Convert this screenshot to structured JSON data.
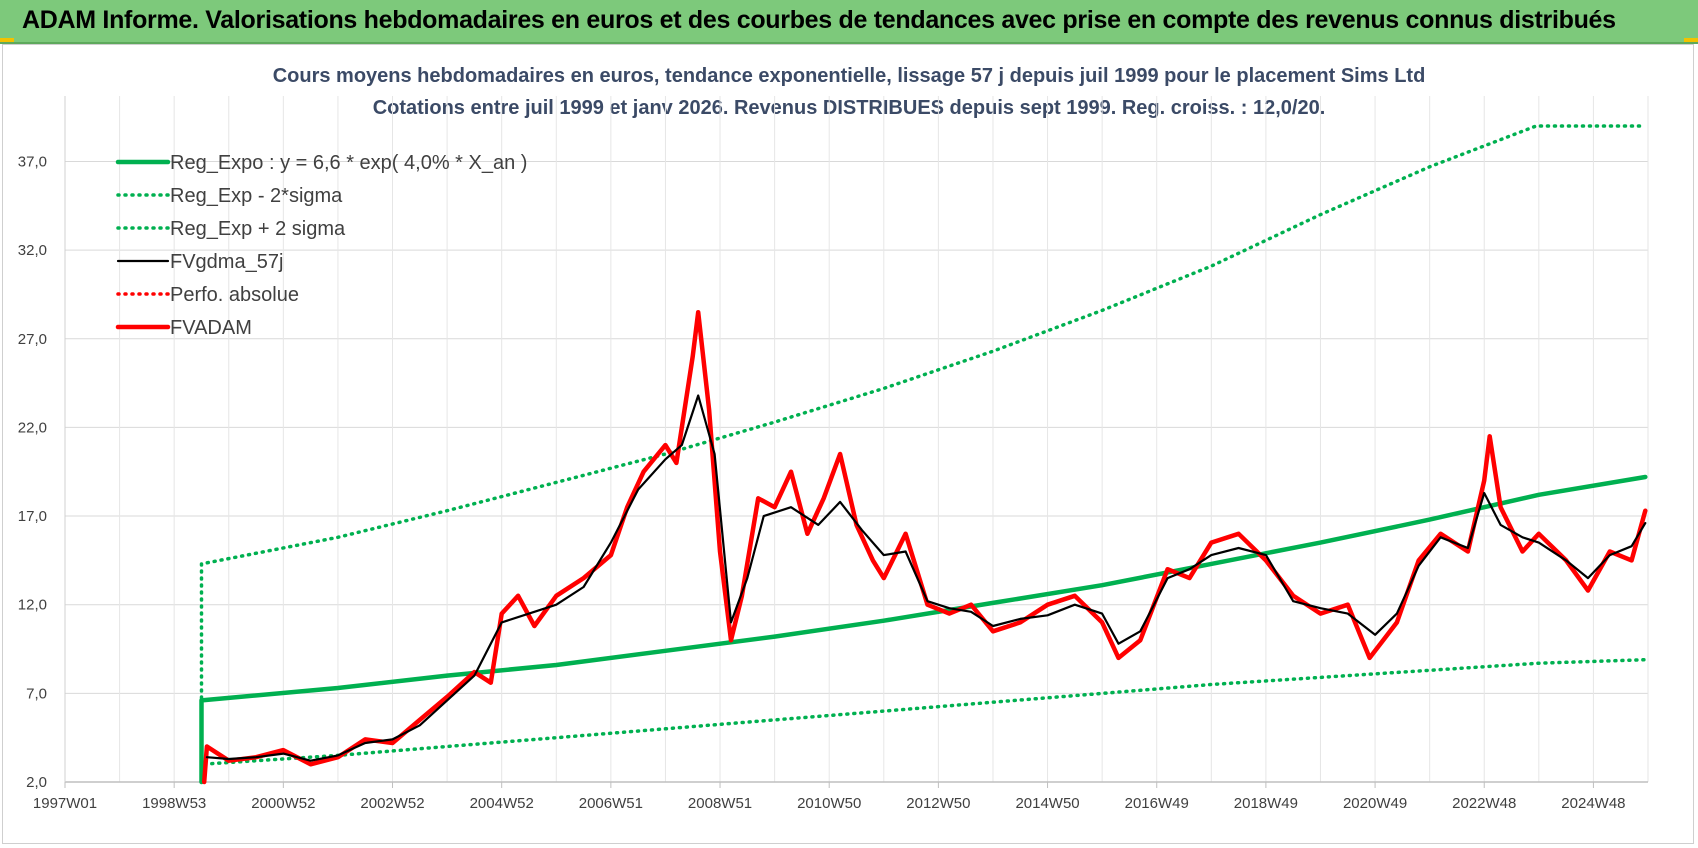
{
  "header": {
    "title": "ADAM Informe. Valorisations hebdomadaires en euros et des courbes de tendances avec prise en compte des revenus connus distribués",
    "background": "#7dc97b"
  },
  "chart_data": {
    "type": "line",
    "title": "Cours moyens hebdomadaires en euros, tendance exponentielle, lissage 57 j depuis juil 1999 pour le placement Sims Ltd",
    "subtitle": "Cotations entre juil 1999 et janv 2026. Revenus DISTRIBUES depuis sept 1999. Reg. croiss. : 12,0/20.",
    "xlabel": "",
    "ylabel": "",
    "xlim": [
      1997.0,
      2026.0
    ],
    "ylim": [
      2.0,
      39.0
    ],
    "y_ticks": [
      "2,0",
      "7,0",
      "12,0",
      "17,0",
      "22,0",
      "27,0",
      "32,0",
      "37,0"
    ],
    "x_ticks": [
      "1997W01",
      "1998W53",
      "2000W52",
      "2002W52",
      "2004W52",
      "2006W51",
      "2008W51",
      "2010W50",
      "2012W50",
      "2014W50",
      "2016W49",
      "2018W49",
      "2020W49",
      "2022W48",
      "2024W48"
    ],
    "grid": true,
    "legend_position": "top-left",
    "series": [
      {
        "name": "Reg_Expo : y = 6,6 * exp( 4,0% *  X_an )",
        "color": "#00b050",
        "style": "solid-thick",
        "points": [
          [
            1999.5,
            2.0
          ],
          [
            1999.5,
            6.6
          ],
          [
            2002,
            7.3
          ],
          [
            2004,
            8.0
          ],
          [
            2006,
            8.6
          ],
          [
            2008,
            9.4
          ],
          [
            2010,
            10.2
          ],
          [
            2012,
            11.1
          ],
          [
            2014,
            12.1
          ],
          [
            2016,
            13.1
          ],
          [
            2018,
            14.3
          ],
          [
            2020,
            15.5
          ],
          [
            2022,
            16.8
          ],
          [
            2024,
            18.2
          ],
          [
            2025.95,
            19.2
          ]
        ]
      },
      {
        "name": "Reg_Exp - 2*sigma",
        "color": "#00b050",
        "style": "dotted",
        "points": [
          [
            1999.5,
            2.0
          ],
          [
            1999.5,
            3.0
          ],
          [
            2002,
            3.5
          ],
          [
            2004,
            4.0
          ],
          [
            2006,
            4.5
          ],
          [
            2008,
            5.0
          ],
          [
            2010,
            5.5
          ],
          [
            2012,
            6.0
          ],
          [
            2014,
            6.5
          ],
          [
            2016,
            7.0
          ],
          [
            2018,
            7.5
          ],
          [
            2020,
            7.9
          ],
          [
            2022,
            8.3
          ],
          [
            2024,
            8.7
          ],
          [
            2025.95,
            8.9
          ]
        ]
      },
      {
        "name": "Reg_Exp + 2 sigma",
        "color": "#00b050",
        "style": "dotted",
        "points": [
          [
            1999.5,
            2.0
          ],
          [
            1999.5,
            14.3
          ],
          [
            2002,
            15.8
          ],
          [
            2004,
            17.3
          ],
          [
            2006,
            18.9
          ],
          [
            2008,
            20.5
          ],
          [
            2010,
            22.3
          ],
          [
            2012,
            24.2
          ],
          [
            2014,
            26.3
          ],
          [
            2016,
            28.6
          ],
          [
            2018,
            31.1
          ],
          [
            2020,
            34.0
          ],
          [
            2022,
            36.7
          ],
          [
            2023.95,
            39.0
          ],
          [
            2025.95,
            39.0
          ]
        ]
      },
      {
        "name": "FVgdma_57j",
        "color": "#000000",
        "style": "solid",
        "points": [
          [
            1999.6,
            3.4
          ],
          [
            2000,
            3.3
          ],
          [
            2000.5,
            3.4
          ],
          [
            2001,
            3.6
          ],
          [
            2001.5,
            3.2
          ],
          [
            2002,
            3.5
          ],
          [
            2002.5,
            4.2
          ],
          [
            2003,
            4.4
          ],
          [
            2003.5,
            5.2
          ],
          [
            2004,
            6.6
          ],
          [
            2004.5,
            8.0
          ],
          [
            2005,
            11.0
          ],
          [
            2005.5,
            11.5
          ],
          [
            2006,
            12.0
          ],
          [
            2006.5,
            13.0
          ],
          [
            2007,
            15.5
          ],
          [
            2007.5,
            18.5
          ],
          [
            2008,
            20.2
          ],
          [
            2008.3,
            21.0
          ],
          [
            2008.6,
            23.8
          ],
          [
            2008.9,
            20.5
          ],
          [
            2009.2,
            11.0
          ],
          [
            2009.5,
            13.5
          ],
          [
            2009.8,
            17.0
          ],
          [
            2010.3,
            17.5
          ],
          [
            2010.8,
            16.5
          ],
          [
            2011.2,
            17.8
          ],
          [
            2011.6,
            16.2
          ],
          [
            2012,
            14.8
          ],
          [
            2012.4,
            15.0
          ],
          [
            2012.8,
            12.2
          ],
          [
            2013.2,
            11.8
          ],
          [
            2013.6,
            11.6
          ],
          [
            2014,
            10.8
          ],
          [
            2014.5,
            11.2
          ],
          [
            2015,
            11.4
          ],
          [
            2015.5,
            12.0
          ],
          [
            2016,
            11.5
          ],
          [
            2016.3,
            9.8
          ],
          [
            2016.7,
            10.5
          ],
          [
            2017.2,
            13.5
          ],
          [
            2017.6,
            14.0
          ],
          [
            2018,
            14.8
          ],
          [
            2018.5,
            15.2
          ],
          [
            2019,
            14.8
          ],
          [
            2019.5,
            12.2
          ],
          [
            2020,
            11.8
          ],
          [
            2020.5,
            11.5
          ],
          [
            2021,
            10.3
          ],
          [
            2021.4,
            11.5
          ],
          [
            2021.8,
            14.2
          ],
          [
            2022.2,
            15.8
          ],
          [
            2022.7,
            15.2
          ],
          [
            2023,
            18.3
          ],
          [
            2023.3,
            16.5
          ],
          [
            2023.7,
            15.8
          ],
          [
            2024,
            15.5
          ],
          [
            2024.5,
            14.5
          ],
          [
            2024.9,
            13.5
          ],
          [
            2025.3,
            14.8
          ],
          [
            2025.7,
            15.3
          ],
          [
            2025.95,
            16.6
          ]
        ]
      },
      {
        "name": "Perfo. absolue",
        "color": "#ff0000",
        "style": "dotted",
        "points": []
      },
      {
        "name": "FVADAM",
        "color": "#ff0000",
        "style": "solid-thick",
        "points": [
          [
            1999.55,
            2.0
          ],
          [
            1999.6,
            4.0
          ],
          [
            2000,
            3.2
          ],
          [
            2000.5,
            3.4
          ],
          [
            2001,
            3.8
          ],
          [
            2001.5,
            3.0
          ],
          [
            2002,
            3.4
          ],
          [
            2002.5,
            4.4
          ],
          [
            2003,
            4.2
          ],
          [
            2003.5,
            5.5
          ],
          [
            2004,
            6.8
          ],
          [
            2004.5,
            8.2
          ],
          [
            2004.8,
            7.6
          ],
          [
            2005,
            11.5
          ],
          [
            2005.3,
            12.5
          ],
          [
            2005.6,
            10.8
          ],
          [
            2006,
            12.5
          ],
          [
            2006.5,
            13.5
          ],
          [
            2007,
            14.8
          ],
          [
            2007.3,
            17.5
          ],
          [
            2007.6,
            19.5
          ],
          [
            2008,
            21.0
          ],
          [
            2008.2,
            20.0
          ],
          [
            2008.5,
            26.0
          ],
          [
            2008.6,
            28.5
          ],
          [
            2008.8,
            23.0
          ],
          [
            2009.0,
            15.0
          ],
          [
            2009.2,
            10.0
          ],
          [
            2009.4,
            12.5
          ],
          [
            2009.7,
            18.0
          ],
          [
            2010,
            17.5
          ],
          [
            2010.3,
            19.5
          ],
          [
            2010.6,
            16.0
          ],
          [
            2010.9,
            18.0
          ],
          [
            2011.2,
            20.5
          ],
          [
            2011.5,
            16.5
          ],
          [
            2011.8,
            14.5
          ],
          [
            2012,
            13.5
          ],
          [
            2012.4,
            16.0
          ],
          [
            2012.8,
            12.0
          ],
          [
            2013.2,
            11.5
          ],
          [
            2013.6,
            12.0
          ],
          [
            2014,
            10.5
          ],
          [
            2014.5,
            11.0
          ],
          [
            2015,
            12.0
          ],
          [
            2015.5,
            12.5
          ],
          [
            2016,
            11.0
          ],
          [
            2016.3,
            9.0
          ],
          [
            2016.7,
            10.0
          ],
          [
            2017.2,
            14.0
          ],
          [
            2017.6,
            13.5
          ],
          [
            2018,
            15.5
          ],
          [
            2018.5,
            16.0
          ],
          [
            2019,
            14.5
          ],
          [
            2019.5,
            12.5
          ],
          [
            2020,
            11.5
          ],
          [
            2020.5,
            12.0
          ],
          [
            2020.9,
            9.0
          ],
          [
            2021.4,
            11.0
          ],
          [
            2021.8,
            14.5
          ],
          [
            2022.2,
            16.0
          ],
          [
            2022.7,
            15.0
          ],
          [
            2023.0,
            19.0
          ],
          [
            2023.1,
            21.5
          ],
          [
            2023.3,
            17.5
          ],
          [
            2023.7,
            15.0
          ],
          [
            2024,
            16.0
          ],
          [
            2024.5,
            14.5
          ],
          [
            2024.9,
            12.8
          ],
          [
            2025.3,
            15.0
          ],
          [
            2025.7,
            14.5
          ],
          [
            2025.95,
            17.3
          ]
        ]
      }
    ]
  }
}
